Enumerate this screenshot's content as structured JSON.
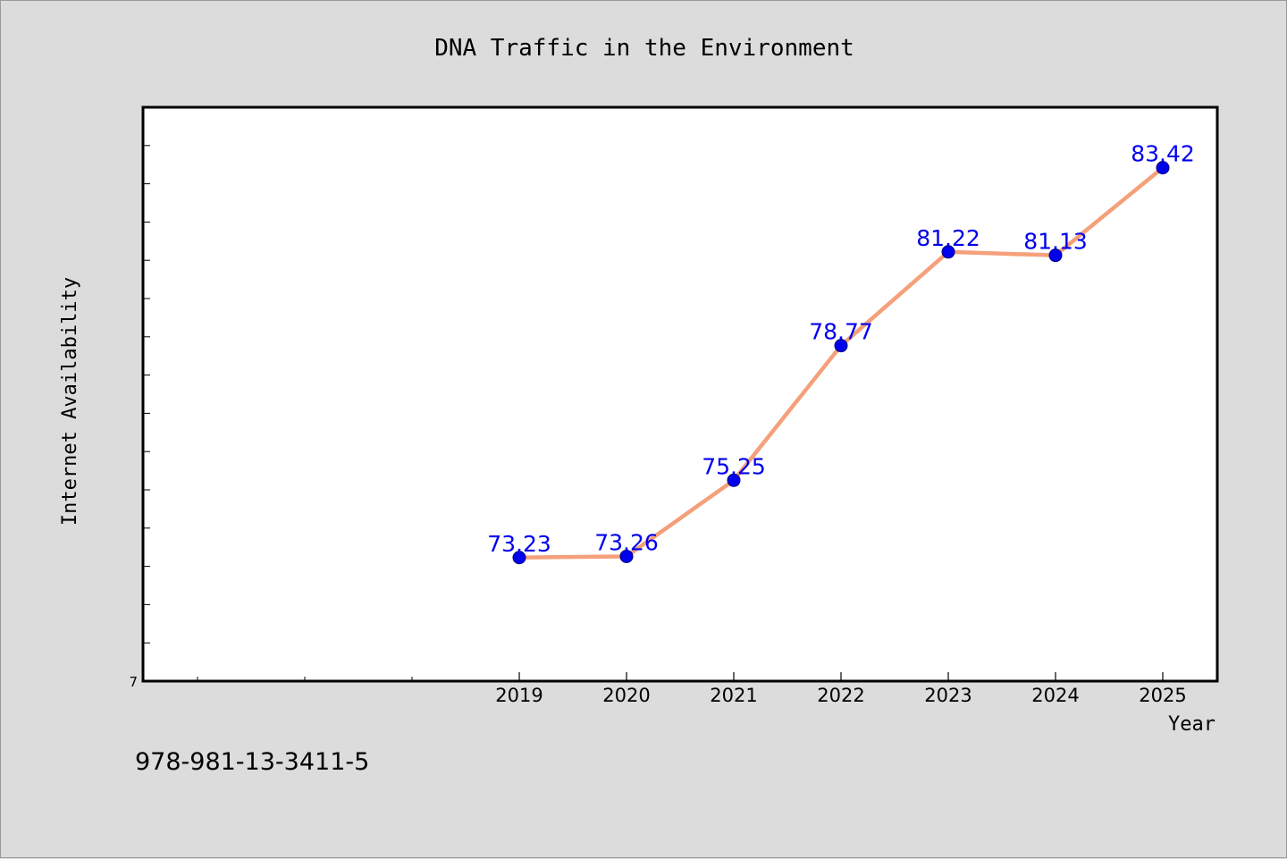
{
  "chart_data": {
    "type": "line",
    "title": "DNA Traffic in the Environment",
    "xlabel": "Year",
    "ylabel": "Internet Availability",
    "categories": [
      "2019",
      "2020",
      "2021",
      "2022",
      "2023",
      "2024",
      "2025"
    ],
    "series": [
      {
        "values": [
          73.23,
          73.26,
          75.25,
          78.77,
          81.22,
          81.13,
          83.42
        ],
        "labels": [
          "73.23",
          "73.26",
          "75.25",
          "78.77",
          "81.22",
          "81.13",
          "83.42"
        ],
        "line_color": "#f4a07a",
        "marker_color": "#0000ee"
      }
    ],
    "ylim": [
      70,
      85
    ],
    "y_tick_step": 1,
    "y_tick_label": "7",
    "grid": false,
    "legend": "none"
  },
  "footer": {
    "code": "978-981-13-3411-5"
  },
  "colors": {
    "background": "#dcdcdc",
    "plot_background": "#ffffff",
    "axis": "#000000"
  }
}
